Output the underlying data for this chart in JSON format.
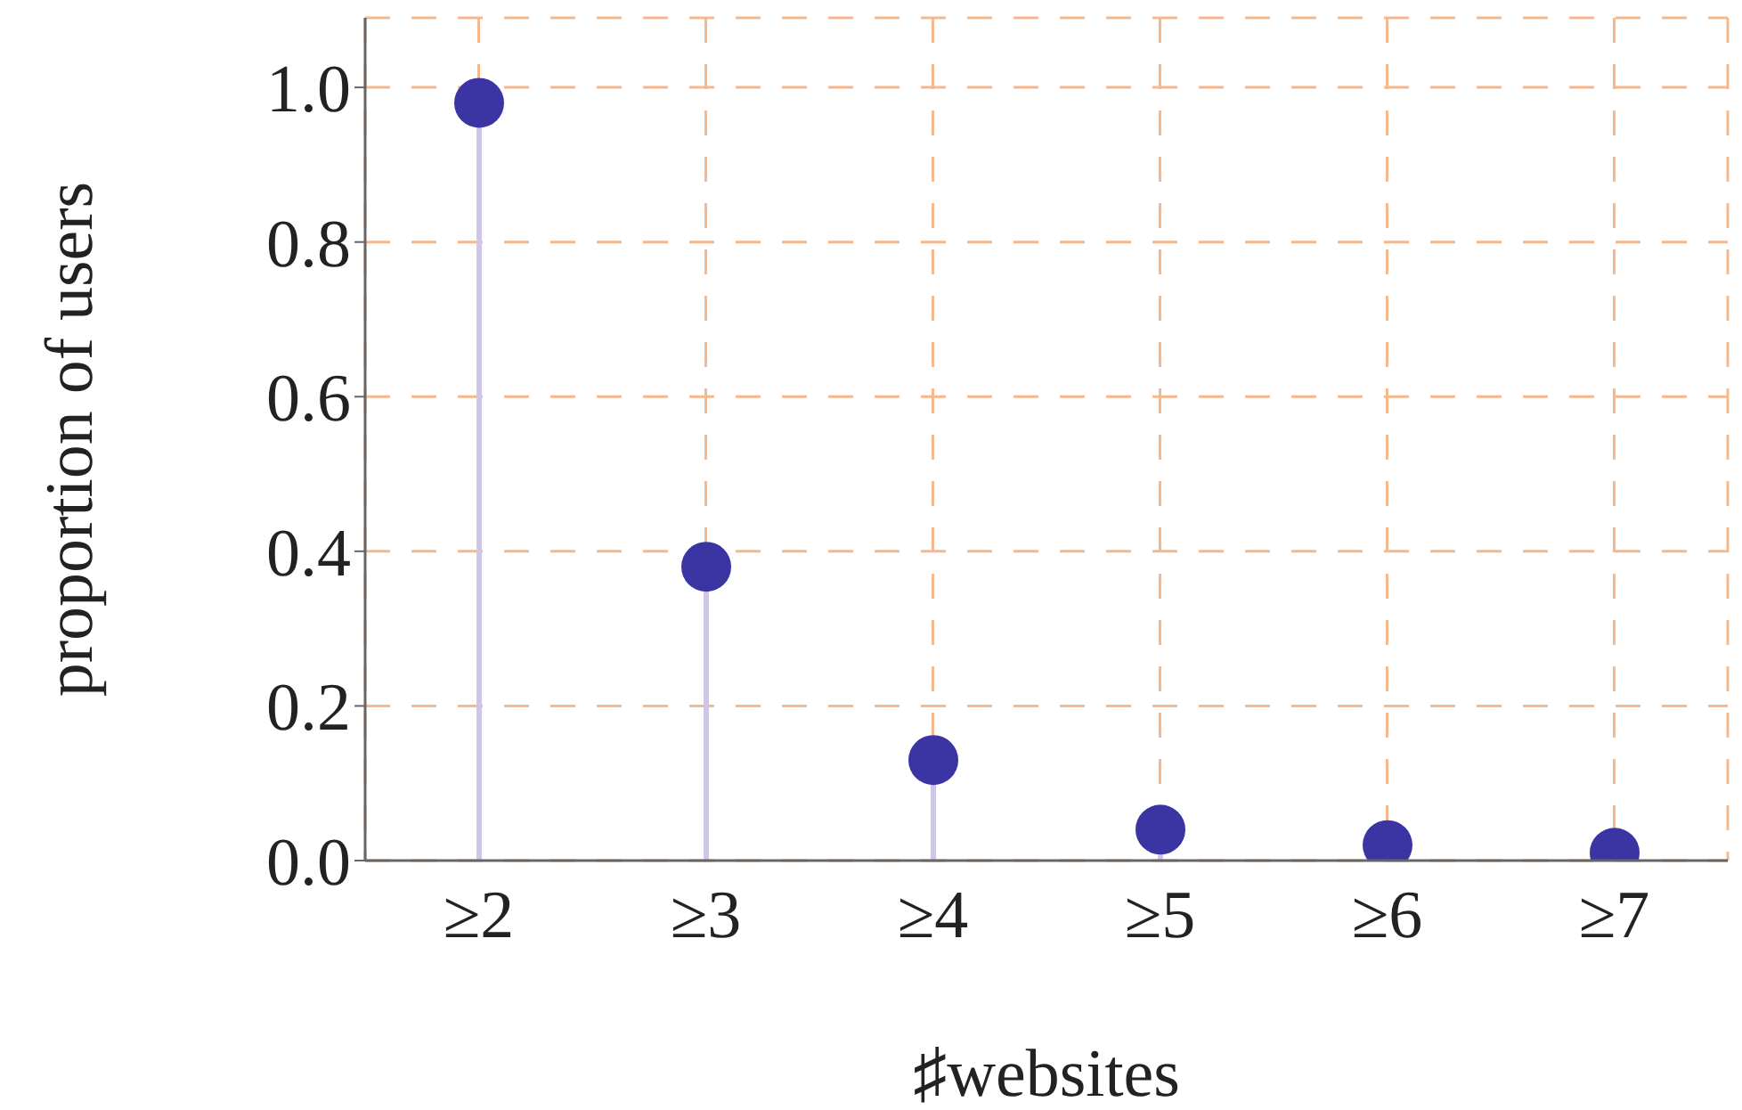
{
  "chart_data": {
    "type": "lollipop",
    "xlabel": "♯websites",
    "ylabel": "proportion of users",
    "categories": [
      "≥2",
      "≥3",
      "≥4",
      "≥5",
      "≥6",
      "≥7"
    ],
    "values": [
      0.98,
      0.38,
      0.13,
      0.04,
      0.02,
      0.01
    ],
    "color": "#3b35a3",
    "ylim": [
      0,
      1.09
    ],
    "yticks": [
      {
        "value": 0,
        "label": "0.0"
      },
      {
        "value": 0.2,
        "label": "0.2"
      },
      {
        "value": 0.4,
        "label": "0.4"
      },
      {
        "value": 0.6,
        "label": "0.6"
      },
      {
        "value": 0.8,
        "label": "0.8"
      },
      {
        "value": 1,
        "label": "1.0"
      }
    ],
    "grid": true,
    "marker": "circle"
  }
}
